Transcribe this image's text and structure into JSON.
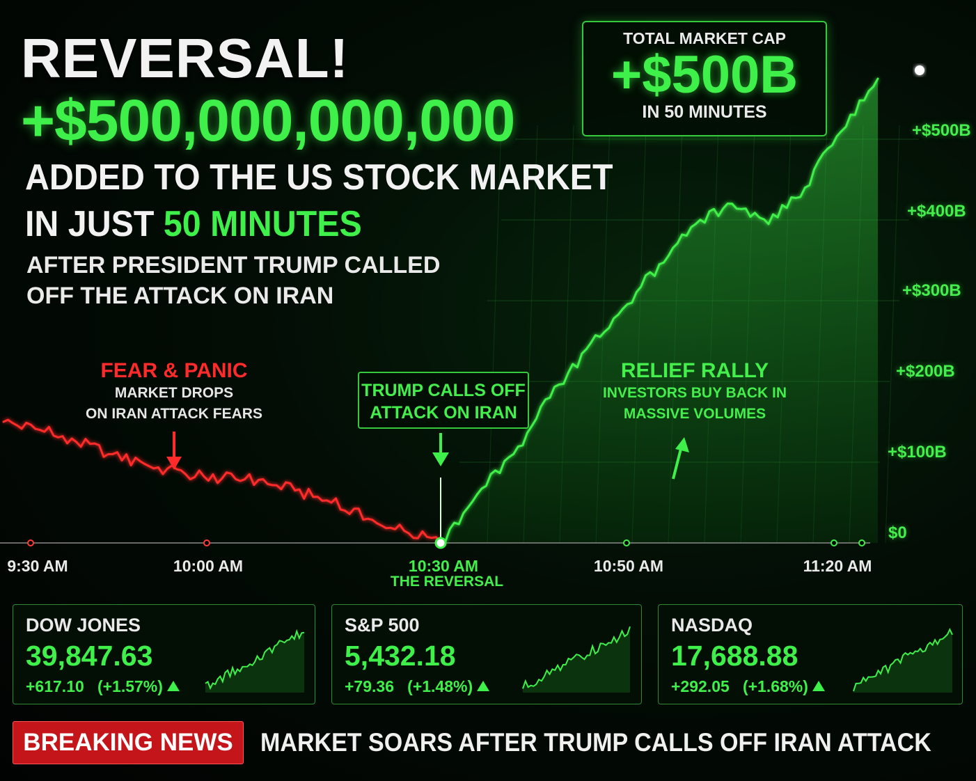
{
  "headline": {
    "title": "REVERSAL!",
    "amount": "+$500,000,000,000",
    "line1": "ADDED TO THE US STOCK MARKET",
    "line2_prefix": "IN JUST ",
    "line2_highlight": "50 MINUTES",
    "sub1": "AFTER PRESIDENT TRUMP CALLED",
    "sub2": "OFF THE ATTACK ON IRAN"
  },
  "market_cap_box": {
    "label": "TOTAL MARKET CAP",
    "value": "+$500B",
    "sub": "IN 50 MINUTES"
  },
  "annotations": {
    "fear_title": "FEAR & PANIC",
    "fear_sub1": "MARKET DROPS",
    "fear_sub2": "ON IRAN ATTACK FEARS",
    "trump_line1": "TRUMP CALLS OFF",
    "trump_line2": "ATTACK ON IRAN",
    "relief_title": "RELIEF RALLY",
    "relief_sub1": "INVESTORS BUY BACK IN",
    "relief_sub2": "MASSIVE VOLUMES"
  },
  "colors": {
    "green": "#3ff04a",
    "red": "#ff2b2b",
    "background": "#020603",
    "badge": "#c4151a"
  },
  "chart_data": {
    "type": "line",
    "title": "",
    "xlabel": "",
    "ylabel": "",
    "x_ticks": [
      "9:30 AM",
      "10:00 AM",
      "10:30 AM",
      "10:50 AM",
      "11:20 AM"
    ],
    "x_tick_sub": "THE REVERSAL",
    "y_ticks": [
      "$0",
      "+$100B",
      "+$200B",
      "+$300B",
      "+$400B",
      "+$500B"
    ],
    "ylim": [
      0,
      500
    ],
    "y_unit": "$B",
    "grid": true,
    "series": [
      {
        "segment": "decline",
        "color": "red",
        "x": [
          "9:30",
          "9:35",
          "9:40",
          "9:45",
          "9:50",
          "9:55",
          "10:00",
          "10:05",
          "10:10",
          "10:15",
          "10:20",
          "10:25",
          "10:30"
        ],
        "values": [
          150,
          140,
          125,
          110,
          95,
          85,
          80,
          78,
          65,
          50,
          30,
          15,
          0
        ]
      },
      {
        "segment": "rally",
        "color": "green",
        "x": [
          "10:30",
          "10:35",
          "10:40",
          "10:45",
          "10:50",
          "10:55",
          "11:00",
          "11:05",
          "11:10",
          "11:15",
          "11:20",
          "11:25",
          "11:30"
        ],
        "values": [
          0,
          60,
          110,
          180,
          240,
          290,
          345,
          395,
          420,
          395,
          440,
          510,
          575
        ]
      }
    ]
  },
  "tickers": [
    {
      "name": "DOW JONES",
      "value": "39,847.63",
      "change": "+617.10   (+1.57%)"
    },
    {
      "name": "S&P 500",
      "value": "5,432.18",
      "change": "+79.36   (+1.48%)"
    },
    {
      "name": "NASDAQ",
      "value": "17,688.88",
      "change": "+292.05   (+1.68%)"
    }
  ],
  "breaking": {
    "badge": "BREAKING NEWS",
    "text": "MARKET SOARS AFTER TRUMP CALLS OFF IRAN ATTACK"
  }
}
